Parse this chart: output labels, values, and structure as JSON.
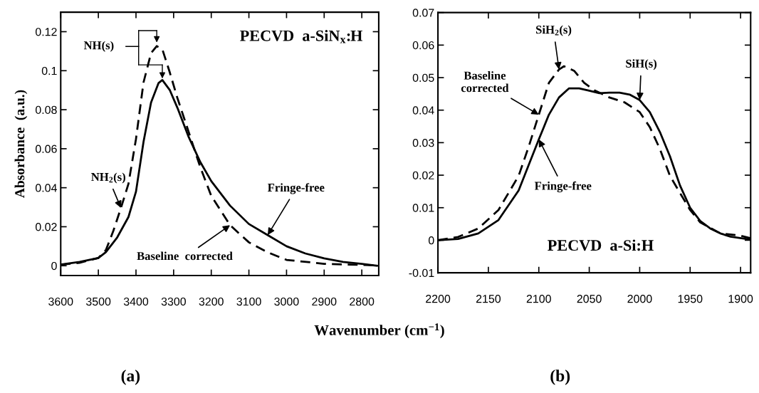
{
  "chart_data": [
    {
      "type": "line",
      "title": "(a)",
      "xlabel": "Wavenumber (cm$^{−1}$)",
      "ylabel": "Absorbance  (a.u.)",
      "xlim": [
        3600,
        2755
      ],
      "xticks": [
        3600,
        3500,
        3400,
        3300,
        3200,
        3100,
        3000,
        2900,
        2800
      ],
      "ylim": [
        -0.005,
        0.13
      ],
      "yticks": [
        0,
        0.02,
        0.04,
        0.06,
        0.08,
        0.1,
        0.12
      ],
      "grid": false,
      "legend": false,
      "series": [
        {
          "color": "#000000",
          "line_style": "solid",
          "x": [
            3600,
            3550,
            3500,
            3480,
            3450,
            3420,
            3400,
            3380,
            3360,
            3340,
            3330,
            3310,
            3290,
            3260,
            3230,
            3200,
            3150,
            3100,
            3050,
            3000,
            2950,
            2900,
            2850,
            2800,
            2760
          ],
          "values": [
            0.0006,
            0.002,
            0.004,
            0.007,
            0.0145,
            0.025,
            0.038,
            0.0635,
            0.0837,
            0.0937,
            0.0952,
            0.09,
            0.081,
            0.066,
            0.0535,
            0.0434,
            0.0308,
            0.0214,
            0.0157,
            0.01,
            0.0063,
            0.0038,
            0.002,
            0.001,
            0.0
          ]
        },
        {
          "color": "#000000",
          "line_style": "dashed",
          "x": [
            3600,
            3550,
            3500,
            3480,
            3460,
            3440,
            3420,
            3400,
            3380,
            3360,
            3345,
            3330,
            3310,
            3290,
            3260,
            3230,
            3200,
            3150,
            3100,
            3050,
            3000,
            2900,
            2800,
            2760
          ],
          "values": [
            0.0005,
            0.0015,
            0.004,
            0.008,
            0.018,
            0.0296,
            0.042,
            0.065,
            0.094,
            0.109,
            0.1126,
            0.111,
            0.099,
            0.086,
            0.0686,
            0.051,
            0.0358,
            0.0208,
            0.012,
            0.0069,
            0.003,
            0.001,
            0.0004,
            0.0002
          ]
        }
      ],
      "annotations": [
        "PECVD  a-SiN$_{x}$:H",
        "NH(s)",
        {
          "text": "NH$_{2}$(s)",
          "x": 3440,
          "y": 0.0296
        },
        {
          "text": "Fringe-free",
          "x": 3050,
          "y": 0.0157
        },
        {
          "text": "Baseline  corrected",
          "x": 3150,
          "y": 0.0208
        }
      ]
    },
    {
      "type": "line",
      "title": "(b)",
      "xlim": [
        2200,
        1890
      ],
      "xticks": [
        2200,
        2150,
        2100,
        2050,
        2000,
        1950,
        1900
      ],
      "ylim": [
        -0.01,
        0.07
      ],
      "yticks": [
        -0.01,
        0,
        0.01,
        0.02,
        0.03,
        0.04,
        0.05,
        0.06,
        0.07
      ],
      "grid": false,
      "legend": false,
      "series": [
        {
          "color": "#000000",
          "line_style": "solid",
          "x": [
            2200,
            2180,
            2160,
            2140,
            2120,
            2100,
            2090,
            2080,
            2070,
            2060,
            2050,
            2040,
            2030,
            2020,
            2010,
            2000,
            1990,
            1980,
            1970,
            1960,
            1950,
            1940,
            1930,
            1920,
            1910,
            1890
          ],
          "values": [
            0.0,
            0.0004,
            0.0021,
            0.0062,
            0.0153,
            0.031,
            0.0386,
            0.0439,
            0.0467,
            0.0467,
            0.046,
            0.0452,
            0.0454,
            0.0454,
            0.0448,
            0.0431,
            0.0394,
            0.0333,
            0.0258,
            0.0168,
            0.01,
            0.0059,
            0.0036,
            0.0021,
            0.0011,
            0.0002
          ]
        },
        {
          "color": "#000000",
          "line_style": "dashed",
          "x": [
            2200,
            2180,
            2160,
            2140,
            2120,
            2110,
            2100,
            2090,
            2080,
            2075,
            2065,
            2055,
            2045,
            2030,
            2015,
            2000,
            1990,
            1980,
            1970,
            1960,
            1950,
            1940,
            1920,
            1900,
            1890
          ],
          "values": [
            0.0,
            0.001,
            0.0036,
            0.0093,
            0.0198,
            0.0288,
            0.0386,
            0.0484,
            0.0525,
            0.0535,
            0.0521,
            0.0484,
            0.0461,
            0.0439,
            0.0424,
            0.0394,
            0.0348,
            0.0281,
            0.0198,
            0.0145,
            0.0093,
            0.0055,
            0.0021,
            0.0014,
            0.0006
          ]
        }
      ],
      "annotations": [
        {
          "text": "SiH$_{2}$(s)",
          "x": 2080,
          "y": 0.0525
        },
        {
          "text": "SiH(s)",
          "x": 2000,
          "y": 0.0431
        },
        {
          "text": "Baseline\ncorrected",
          "x": 2100,
          "y": 0.0386
        },
        {
          "text": "Fringe-free",
          "x": 2100,
          "y": 0.031
        },
        "PECVD  a-Si:H"
      ]
    }
  ]
}
